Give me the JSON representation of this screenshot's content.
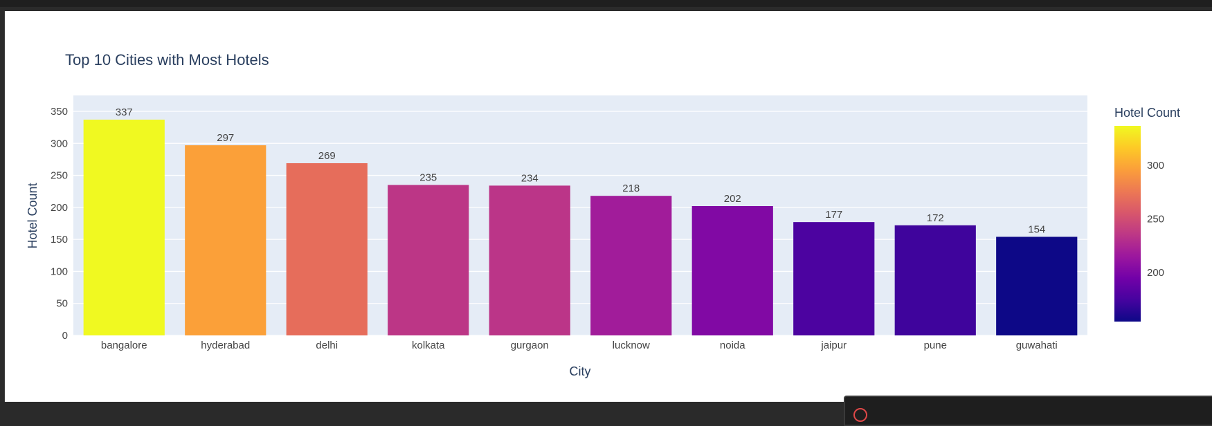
{
  "chart_data": {
    "type": "bar",
    "title": "Top 10 Cities with Most Hotels",
    "xlabel": "City",
    "ylabel": "Hotel Count",
    "categories": [
      "bangalore",
      "hyderabad",
      "delhi",
      "kolkata",
      "gurgaon",
      "lucknow",
      "noida",
      "jaipur",
      "pune",
      "guwahati"
    ],
    "values": [
      337,
      297,
      269,
      235,
      234,
      218,
      202,
      177,
      172,
      154
    ],
    "data_labels": [
      "337",
      "297",
      "269",
      "235",
      "234",
      "218",
      "202",
      "177",
      "172",
      "154"
    ],
    "ylim": [
      0,
      350
    ],
    "yticks": [
      0,
      50,
      100,
      150,
      200,
      250,
      300,
      350
    ],
    "grid": true,
    "colorbar": {
      "title": "Hotel Count",
      "range": [
        154,
        337
      ],
      "ticks": [
        200,
        250,
        300
      ],
      "colorscale": [
        "#0d0887",
        "#46039f",
        "#7201a8",
        "#9c179e",
        "#bd3786",
        "#d8576b",
        "#ed7953",
        "#fb9f3a",
        "#fdca26",
        "#f0f921"
      ]
    },
    "colors": {
      "plot_bg": "#e5ecf6",
      "grid": "#ffffff",
      "text": "#2a3f5f",
      "tick_text": "#444444"
    }
  }
}
